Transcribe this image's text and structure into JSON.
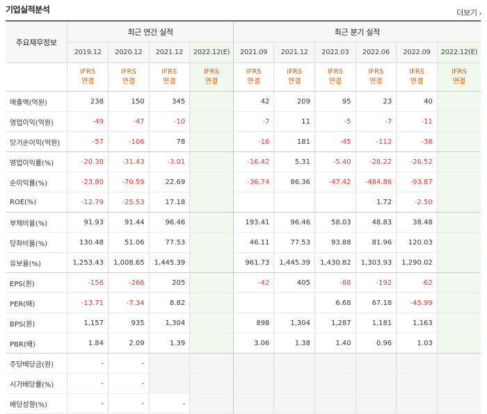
{
  "title": "기업실적분석",
  "more_label": "더보기",
  "header": {
    "row_label": "주요재무정보",
    "annual_group": "최근 연간 실적",
    "quarter_group": "최근 분기 실적",
    "annual_periods": [
      "2019.12",
      "2020.12",
      "2021.12",
      "2022.12(E)"
    ],
    "quarter_periods": [
      "2021.09",
      "2021.12",
      "2022.03",
      "2022.06",
      "2022.09",
      "2022.12(E)"
    ],
    "basis_top": "IFRS",
    "basis_bottom": "연결"
  },
  "rows": [
    {
      "label": "매출액(억원)",
      "a": [
        "238",
        "150",
        "345",
        ""
      ],
      "q": [
        "42",
        "209",
        "95",
        "23",
        "40",
        ""
      ]
    },
    {
      "label": "영업이익(억원)",
      "a": [
        "-49",
        "-47",
        "-10",
        ""
      ],
      "q": [
        "-7",
        "11",
        "-5",
        "-7",
        "-11",
        ""
      ]
    },
    {
      "label": "당기순이익(억원)",
      "a": [
        "-57",
        "-106",
        "78",
        ""
      ],
      "q": [
        "-16",
        "181",
        "-45",
        "-112",
        "-38",
        ""
      ]
    },
    {
      "label": "영업이익률(%)",
      "a": [
        "-20.38",
        "-31.43",
        "-3.01",
        ""
      ],
      "q": [
        "-16.42",
        "5.31",
        "-5.40",
        "-28.22",
        "-26.52",
        ""
      ]
    },
    {
      "label": "순이익률(%)",
      "a": [
        "-23.80",
        "-70.59",
        "22.69",
        ""
      ],
      "q": [
        "-36.74",
        "86.36",
        "-47.42",
        "-484.86",
        "-93.87",
        ""
      ]
    },
    {
      "label": "ROE(%)",
      "a": [
        "-12.79",
        "-25.53",
        "17.18",
        ""
      ],
      "q": [
        "",
        "",
        "",
        "1.72",
        "-2.50",
        ""
      ]
    },
    {
      "label": "부채비율(%)",
      "a": [
        "91.93",
        "91.44",
        "96.46",
        ""
      ],
      "q": [
        "193.41",
        "96.46",
        "58.03",
        "48.83",
        "38.48",
        ""
      ]
    },
    {
      "label": "당좌비율(%)",
      "a": [
        "130.48",
        "51.06",
        "77.53",
        ""
      ],
      "q": [
        "46.11",
        "77.53",
        "93.88",
        "81.96",
        "120.03",
        ""
      ]
    },
    {
      "label": "유보율(%)",
      "a": [
        "1,253.43",
        "1,008.65",
        "1,445.39",
        ""
      ],
      "q": [
        "961.73",
        "1,445.39",
        "1,430.82",
        "1,303.93",
        "1,290.02",
        ""
      ]
    },
    {
      "label": "EPS(원)",
      "a": [
        "-156",
        "-266",
        "205",
        ""
      ],
      "q": [
        "-42",
        "405",
        "-88",
        "-192",
        "-62",
        ""
      ]
    },
    {
      "label": "PER(배)",
      "a": [
        "-13.71",
        "-7.34",
        "8.82",
        ""
      ],
      "q": [
        "",
        "",
        "6.68",
        "67.18",
        "-45.99",
        ""
      ]
    },
    {
      "label": "BPS(원)",
      "a": [
        "1,157",
        "935",
        "1,304",
        ""
      ],
      "q": [
        "898",
        "1,304",
        "1,287",
        "1,181",
        "1,163",
        ""
      ]
    },
    {
      "label": "PBR(배)",
      "a": [
        "1.84",
        "2.09",
        "1.39",
        ""
      ],
      "q": [
        "3.06",
        "1.38",
        "1.40",
        "0.96",
        "1.03",
        ""
      ]
    },
    {
      "label": "주당배당금(원)",
      "a": [
        "-",
        "-",
        "",
        ""
      ],
      "q": [
        "",
        "",
        "",
        "",
        "",
        ""
      ]
    },
    {
      "label": "시가배당률(%)",
      "a": [
        "-",
        "-",
        "",
        ""
      ],
      "q": [
        "",
        "",
        "",
        "",
        "",
        ""
      ]
    },
    {
      "label": "배당성향(%)",
      "a": [
        "-",
        "-",
        "-",
        ""
      ],
      "q": [
        "",
        "",
        "",
        "",
        "",
        ""
      ]
    }
  ],
  "colors": {
    "negative": "#e2372f",
    "basis": "#e25c00",
    "estimate_bg": "#f1f8ee"
  }
}
